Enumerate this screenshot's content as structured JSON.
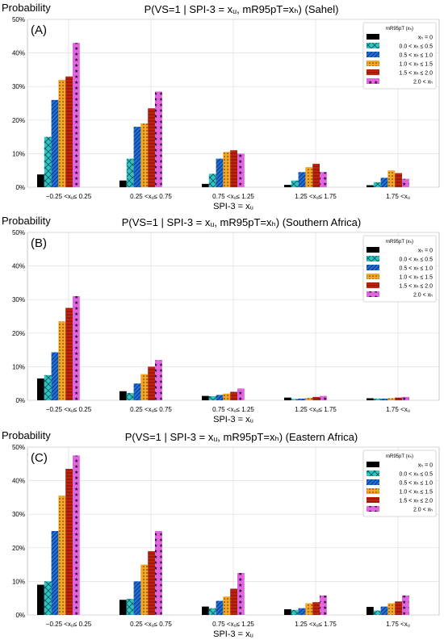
{
  "chart_data": [
    {
      "type": "bar",
      "panel_label": "(A)",
      "title": "P(VS=1 | SPI-3 = xᵤ, mR95pT=xₕ) (Sahel)",
      "ylabel": "Probability",
      "xlabel": "SPI-3 = xᵤ",
      "ylim": [
        0,
        50
      ],
      "yticks": [
        "0%",
        "10%",
        "20%",
        "30%",
        "40%",
        "50%"
      ],
      "categories": [
        "−0.25 <xᵤ≤ 0.25",
        "0.25 <xᵤ≤ 0.75",
        "0.75 <xᵤ≤ 1.25",
        "1.25 <xᵤ≤ 1.75",
        "1.75 <xᵤ"
      ],
      "legend_title": "mR95pT (xₕ)",
      "legend_position": "top-right",
      "grid": true,
      "series": [
        {
          "name": "xₕ = 0",
          "values": [
            3.8,
            2.0,
            1.0,
            0.7,
            0.6
          ]
        },
        {
          "name": "0.0 < xₕ ≤ 0.5",
          "values": [
            15.0,
            8.5,
            4.0,
            2.0,
            1.5
          ]
        },
        {
          "name": "0.5 < xₕ ≤ 1.0",
          "values": [
            26.0,
            18.0,
            8.5,
            4.5,
            2.8
          ]
        },
        {
          "name": "1.0 < xₕ ≤ 1.5",
          "values": [
            32.0,
            19.0,
            10.5,
            6.0,
            5.0
          ]
        },
        {
          "name": "1.5 < xₕ ≤ 2.0",
          "values": [
            33.0,
            23.5,
            11.0,
            7.0,
            4.2
          ]
        },
        {
          "name": "2.0 < xₕ",
          "values": [
            43.0,
            28.5,
            10.0,
            4.5,
            2.5
          ]
        }
      ]
    },
    {
      "type": "bar",
      "panel_label": "(B)",
      "title": "P(VS=1 | SPI-3 = xᵤ, mR95pT=xₕ) (Southern Africa)",
      "ylabel": "Probability",
      "xlabel": "SPI-3 = xᵤ",
      "ylim": [
        0,
        50
      ],
      "yticks": [
        "0%",
        "10%",
        "20%",
        "30%",
        "40%",
        "50%"
      ],
      "categories": [
        "−0.25 <xᵤ≤ 0.25",
        "0.25 <xᵤ≤ 0.75",
        "0.75 <xᵤ≤ 1.25",
        "1.25 <xᵤ≤ 1.75",
        "1.75 <xᵤ"
      ],
      "legend_title": "mR95pT (xₕ)",
      "legend_position": "top-right",
      "grid": true,
      "series": [
        {
          "name": "xₕ = 0",
          "values": [
            6.5,
            2.7,
            1.3,
            0.8,
            0.6
          ]
        },
        {
          "name": "0.0 < xₕ ≤ 0.5",
          "values": [
            7.5,
            2.2,
            1.2,
            0.4,
            0.5
          ]
        },
        {
          "name": "0.5 < xₕ ≤ 1.0",
          "values": [
            14.3,
            5.0,
            1.6,
            0.5,
            0.5
          ]
        },
        {
          "name": "1.0 < xₕ ≤ 1.5",
          "values": [
            23.5,
            7.8,
            2.0,
            0.7,
            0.6
          ]
        },
        {
          "name": "1.5 < xₕ ≤ 2.0",
          "values": [
            27.5,
            10.0,
            2.5,
            1.0,
            0.8
          ]
        },
        {
          "name": "2.0 < xₕ",
          "values": [
            31.0,
            12.0,
            3.5,
            1.3,
            1.0
          ]
        }
      ]
    },
    {
      "type": "bar",
      "panel_label": "(C)",
      "title": "P(VS=1 | SPI-3 = xᵤ, mR95pT=xₕ) (Eastern Africa)",
      "ylabel": "Probability",
      "xlabel": "SPI-3 = xᵤ",
      "ylim": [
        0,
        50
      ],
      "yticks": [
        "0%",
        "10%",
        "20%",
        "30%",
        "40%",
        "50%"
      ],
      "categories": [
        "−0.25 <xᵤ≤ 0.25",
        "0.25 <xᵤ≤ 0.75",
        "0.75 <xᵤ≤ 1.25",
        "1.25 <xᵤ≤ 1.75",
        "1.75 <xᵤ"
      ],
      "legend_title": "mR95pT (xₕ)",
      "legend_position": "top-right",
      "grid": true,
      "series": [
        {
          "name": "xₕ = 0",
          "values": [
            9.0,
            4.5,
            2.5,
            1.7,
            2.4
          ]
        },
        {
          "name": "0.0 < xₕ ≤ 0.5",
          "values": [
            10.0,
            4.8,
            2.0,
            1.5,
            1.3
          ]
        },
        {
          "name": "0.5 < xₕ ≤ 1.0",
          "values": [
            25.0,
            10.0,
            4.2,
            2.0,
            2.5
          ]
        },
        {
          "name": "1.0 < xₕ ≤ 1.5",
          "values": [
            35.5,
            15.0,
            5.5,
            3.5,
            3.5
          ]
        },
        {
          "name": "1.5 < xₕ ≤ 2.0",
          "values": [
            43.5,
            19.0,
            7.8,
            3.8,
            4.0
          ]
        },
        {
          "name": "2.0 < xₕ",
          "values": [
            47.5,
            25.0,
            12.5,
            5.8,
            5.8
          ]
        }
      ]
    }
  ],
  "colors": {
    "series": [
      "#000000",
      "#2ec4c4",
      "#1f6fd6",
      "#f5a623",
      "#c0230f",
      "#e066e0"
    ]
  }
}
